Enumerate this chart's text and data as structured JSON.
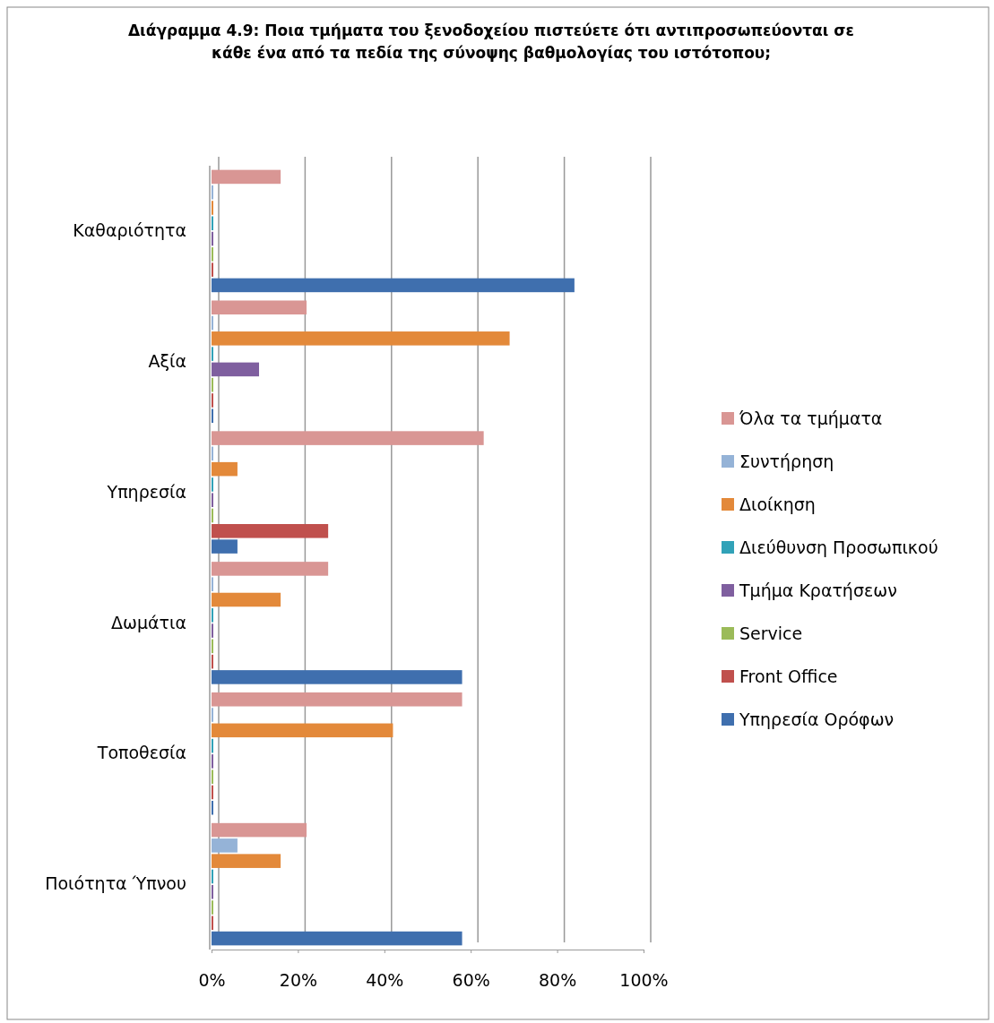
{
  "chart_data": {
    "type": "bar",
    "orientation": "horizontal",
    "title": "Διάγραμμα 4.9: Ποια τμήματα του ξενοδοχείου πιστεύετε ότι αντιπροσωπεύονται σε κάθε ένα από τα πεδία της σύνοψης βαθμολογίας του ιστότοπου;",
    "categories": [
      "Καθαριότητα",
      "Αξία",
      "Υπηρεσία",
      "Δωμάτια",
      "Τοποθεσία",
      "Ποιότητα Ύπνου"
    ],
    "series": [
      {
        "name": "Όλα τα τμήματα",
        "color": "#d99694",
        "values": [
          16,
          22,
          63,
          27,
          58,
          22
        ]
      },
      {
        "name": "Συντήρηση",
        "color": "#95b3d7",
        "values": [
          0,
          0,
          0,
          0,
          0,
          6
        ]
      },
      {
        "name": "Διοίκηση",
        "color": "#e3893a",
        "values": [
          0,
          69,
          6,
          16,
          42,
          16
        ]
      },
      {
        "name": "Διεύθυνση Προσωπικού",
        "color": "#31a2b8",
        "values": [
          0,
          0,
          0,
          0,
          0,
          0
        ]
      },
      {
        "name": "Τμήμα Κρατήσεων",
        "color": "#7f5f9f",
        "values": [
          0,
          11,
          0,
          0,
          0,
          0
        ]
      },
      {
        "name": "Service",
        "color": "#9bbb59",
        "values": [
          0,
          0,
          0,
          0,
          0,
          0
        ]
      },
      {
        "name": "Front Office",
        "color": "#c0504d",
        "values": [
          0,
          0,
          27,
          0,
          0,
          0
        ]
      },
      {
        "name": "Υπηρεσία Ορόφων",
        "color": "#3f6fae",
        "values": [
          84,
          0,
          6,
          58,
          0,
          58
        ]
      }
    ],
    "xlim": [
      0,
      100
    ],
    "xticks": [
      {
        "value": 0,
        "label": "0%"
      },
      {
        "value": 20,
        "label": "20%"
      },
      {
        "value": 40,
        "label": "40%"
      },
      {
        "value": 60,
        "label": "60%"
      },
      {
        "value": 80,
        "label": "80%"
      },
      {
        "value": 100,
        "label": "100%"
      }
    ],
    "grid": "x",
    "legend": "right"
  }
}
